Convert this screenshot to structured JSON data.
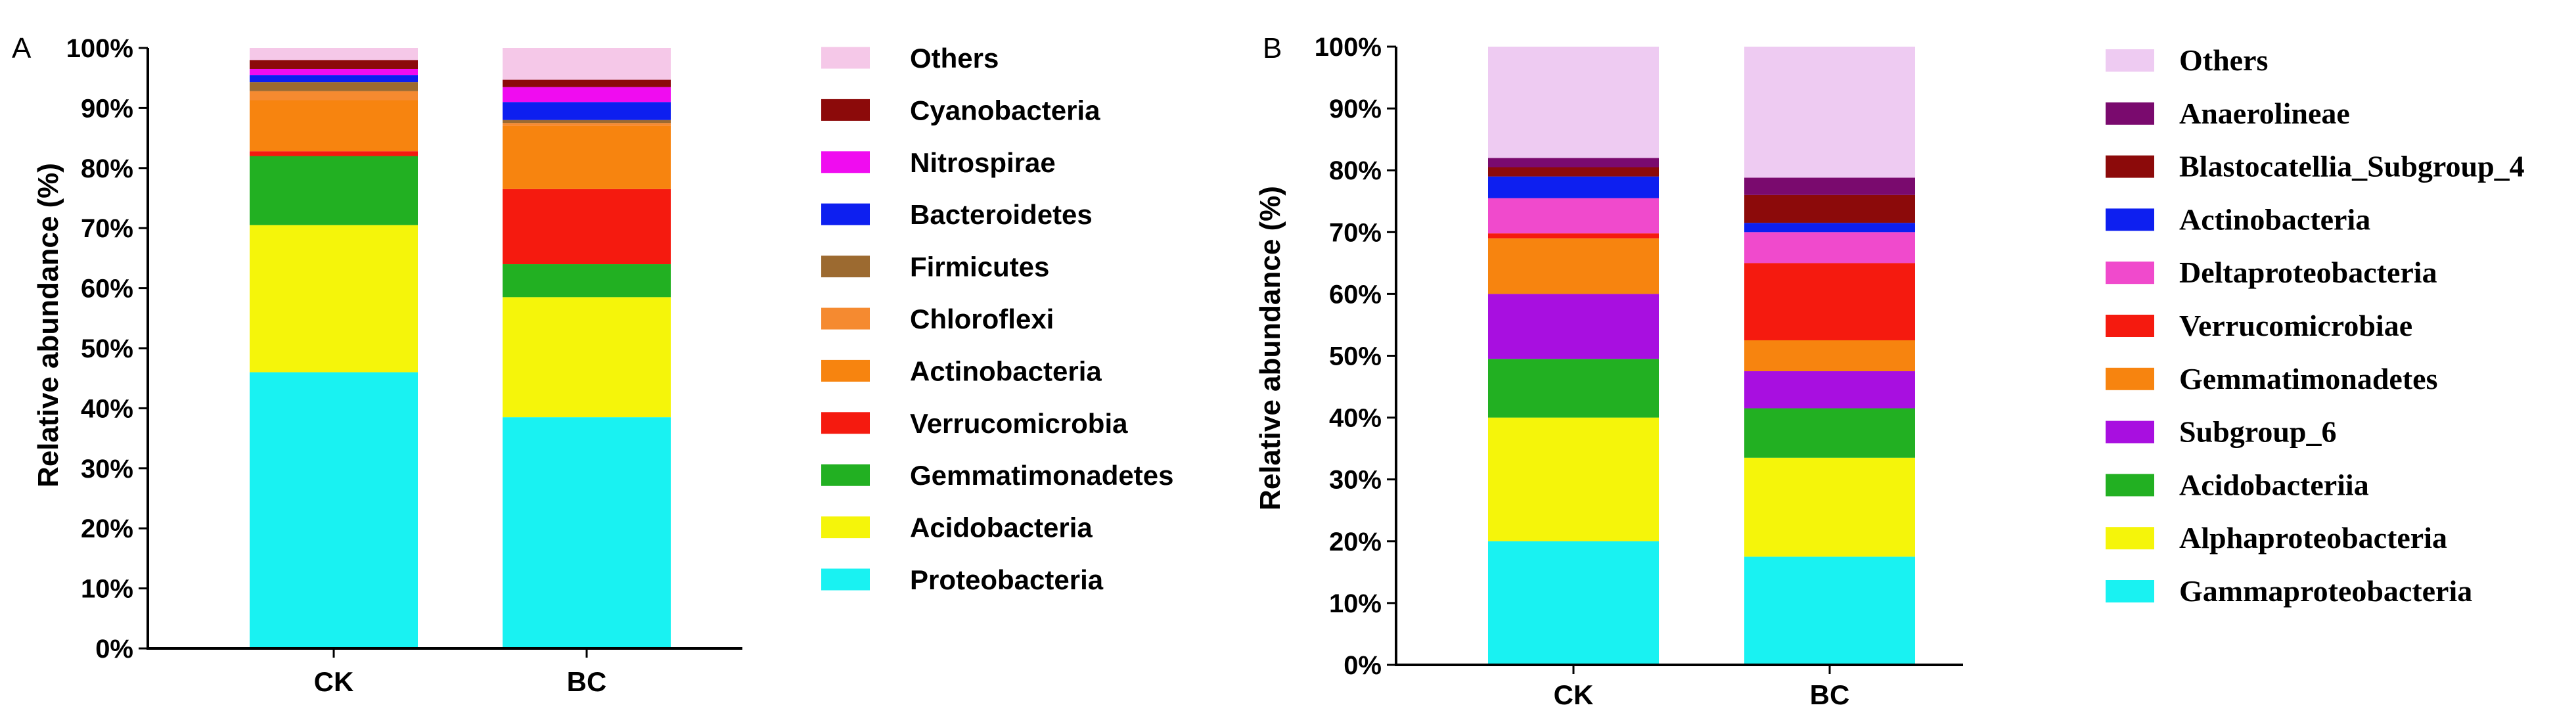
{
  "chart_data": [
    {
      "type": "bar",
      "stacked": true,
      "panel_label": "A",
      "ylabel": "Relative abundance (%)",
      "ylim": [
        0,
        100
      ],
      "yticks": [
        "0%",
        "10%",
        "20%",
        "30%",
        "40%",
        "50%",
        "60%",
        "70%",
        "80%",
        "90%",
        "100%"
      ],
      "categories": [
        "CK",
        "BC"
      ],
      "legend_position": "right",
      "series": [
        {
          "name": "Proteobacteria",
          "color": "#19f2f2",
          "values": [
            46,
            38.5
          ]
        },
        {
          "name": "Acidobacteria",
          "color": "#f5f50a",
          "values": [
            24.5,
            20
          ]
        },
        {
          "name": "Gemmatimonadetes",
          "color": "#22b022",
          "values": [
            11.5,
            5.5
          ]
        },
        {
          "name": "Verrucomicrobia",
          "color": "#f51a0f",
          "values": [
            0.8,
            12.5
          ]
        },
        {
          "name": "Actinobacteria",
          "color": "#f7840f",
          "values": [
            8.5,
            10.5
          ]
        },
        {
          "name": "Chloroflexi",
          "color": "#f58a30",
          "values": [
            1.5,
            0.5
          ]
        },
        {
          "name": "Firmicutes",
          "color": "#9c6a30",
          "values": [
            1.5,
            0.5
          ]
        },
        {
          "name": "Bacteroidetes",
          "color": "#0d1ff0",
          "values": [
            1.2,
            3
          ]
        },
        {
          "name": "Nitrospirae",
          "color": "#f00cf0",
          "values": [
            1,
            2.5
          ]
        },
        {
          "name": "Cyanobacteria",
          "color": "#8c0a0a",
          "values": [
            1.5,
            1.2
          ]
        },
        {
          "name": "Others",
          "color": "#f5c8e8",
          "values": [
            2,
            5.3
          ]
        }
      ]
    },
    {
      "type": "bar",
      "stacked": true,
      "panel_label": "B",
      "ylabel": "Relative abundance (%)",
      "ylim": [
        0,
        100
      ],
      "yticks": [
        "0%",
        "10%",
        "20%",
        "30%",
        "40%",
        "50%",
        "60%",
        "70%",
        "80%",
        "90%",
        "100%"
      ],
      "categories": [
        "CK",
        "BC"
      ],
      "legend_position": "right",
      "series": [
        {
          "name": "Gammaproteobacteria",
          "color": "#19f2f2",
          "values": [
            20,
            17.5
          ]
        },
        {
          "name": "Alphaproteobacteria",
          "color": "#f5f50a",
          "values": [
            20,
            16
          ]
        },
        {
          "name": "Acidobacteriia",
          "color": "#22b022",
          "values": [
            9.5,
            8
          ]
        },
        {
          "name": "Subgroup_6",
          "color": "#a80fe0",
          "values": [
            10.5,
            6
          ]
        },
        {
          "name": "Gemmatimonadetes",
          "color": "#f7840f",
          "values": [
            9,
            5
          ]
        },
        {
          "name": "Verrucomicrobiae",
          "color": "#f51a0f",
          "values": [
            0.8,
            12.5
          ]
        },
        {
          "name": "Deltaproteobacteria",
          "color": "#f04acc",
          "values": [
            5.7,
            5
          ]
        },
        {
          "name": "Actinobacteria",
          "color": "#0d1ff0",
          "values": [
            3.5,
            1.5
          ]
        },
        {
          "name": "Blastocatellia_Subgroup_4",
          "color": "#8c0a0a",
          "values": [
            1.5,
            4.5
          ]
        },
        {
          "name": "Anaerolineae",
          "color": "#7a0a6e",
          "values": [
            1.5,
            2.8
          ]
        },
        {
          "name": "Others",
          "color": "#eecbf2",
          "values": [
            18,
            21.2
          ]
        }
      ]
    }
  ]
}
